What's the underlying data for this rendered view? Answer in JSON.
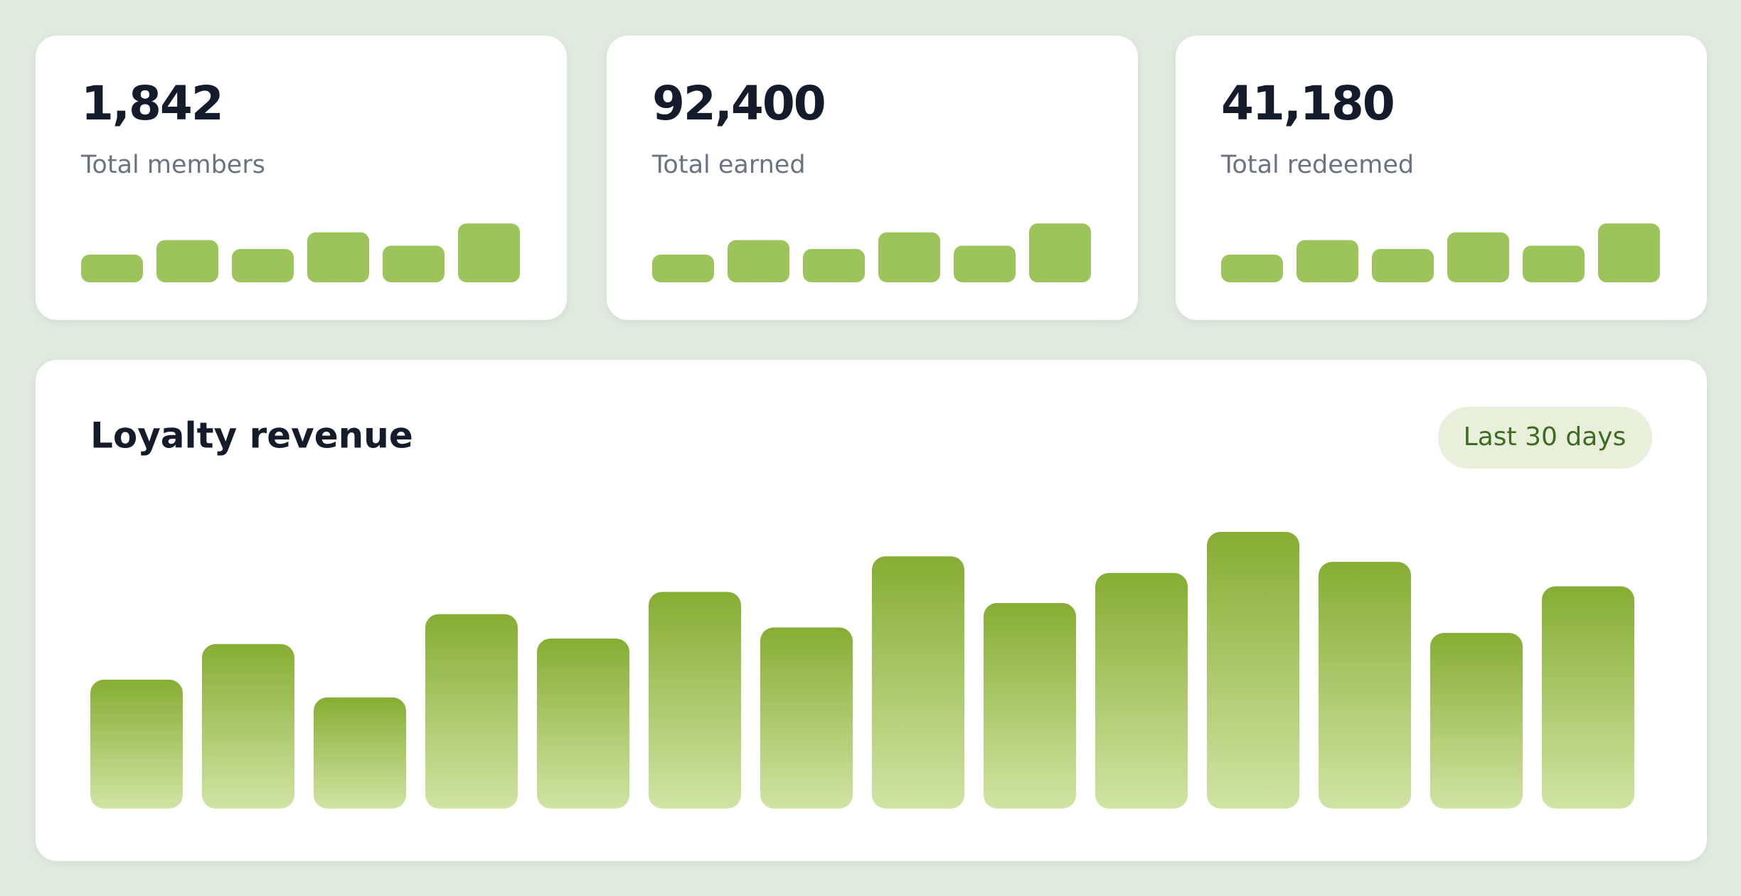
{
  "cards": [
    {
      "value": "1,842",
      "label": "Total members",
      "bars": [
        25,
        38,
        30,
        45,
        33,
        53
      ]
    },
    {
      "value": "92,400",
      "label": "Total earned",
      "bars": [
        25,
        38,
        30,
        45,
        33,
        53
      ]
    },
    {
      "value": "41,180",
      "label": "Total redeemed",
      "bars": [
        25,
        38,
        30,
        45,
        33,
        53
      ]
    }
  ],
  "chart_data": {
    "type": "bar",
    "title": "Loyalty revenue",
    "period": "Last 30 days",
    "values": [
      116,
      148,
      100,
      175,
      153,
      195,
      163,
      227,
      185,
      212,
      249,
      222,
      158,
      200
    ],
    "ylim": [
      0,
      250
    ],
    "color": "#86ad33"
  }
}
